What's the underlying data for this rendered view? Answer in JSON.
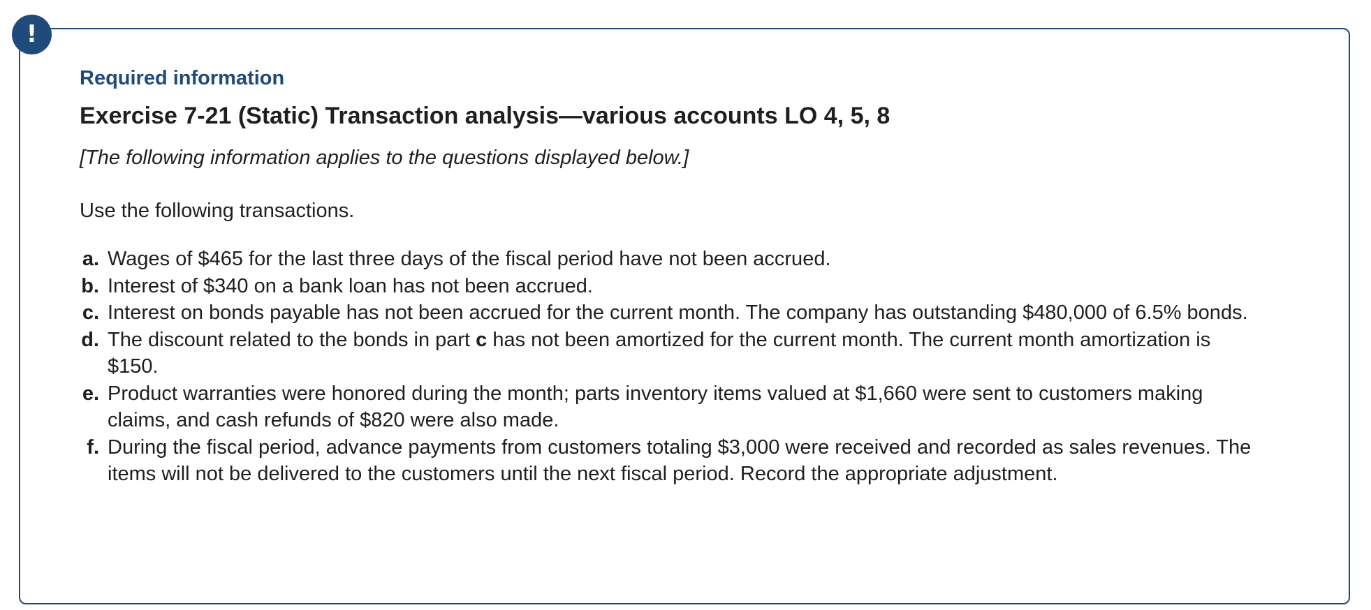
{
  "colors": {
    "accent": "#1f4a7c",
    "text": "#1f1f1f",
    "background": "#ffffff"
  },
  "alert": {
    "icon": "exclamation-icon",
    "glyph": "!"
  },
  "header": {
    "required_info": "Required information",
    "exercise_title": "Exercise 7-21 (Static) Transaction analysis—various accounts LO 4, 5, 8",
    "info_note": "[The following information applies to the questions displayed below.]"
  },
  "body": {
    "intro": "Use the following transactions.",
    "transactions": [
      {
        "letter": "a.",
        "text": "Wages of $465 for the last three days of the fiscal period have not been accrued."
      },
      {
        "letter": "b.",
        "text": "Interest of $340 on a bank loan has not been accrued."
      },
      {
        "letter": "c.",
        "text": "Interest on bonds payable has not been accrued for the current month. The company has outstanding $480,000 of 6.5% bonds."
      },
      {
        "letter": "d.",
        "text_before": "The discount related to the bonds in part ",
        "bold_ref": "c",
        "text_after": " has not been amortized for the current month. The current month amortization is $150."
      },
      {
        "letter": "e.",
        "text": "Product warranties were honored during the month; parts inventory items valued at $1,660 were sent to customers making claims, and cash refunds of $820 were also made."
      },
      {
        "letter": "f.",
        "text": "During the fiscal period, advance payments from customers totaling $3,000 were received and recorded as sales revenues. The items will not be delivered to the customers until the next fiscal period. Record the appropriate adjustment."
      }
    ]
  }
}
